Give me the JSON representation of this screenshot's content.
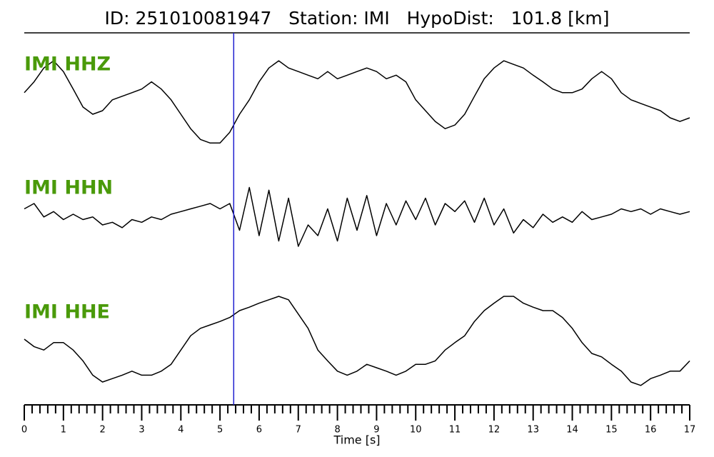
{
  "chart_data": {
    "type": "seismogram",
    "title": "ID: 251010081947   Station: IMI   HypoDist:   101.8 [km]",
    "xlabel": "Time [s]",
    "xlim": [
      0,
      17
    ],
    "xticks": [
      0,
      1,
      2,
      3,
      4,
      5,
      6,
      7,
      8,
      9,
      10,
      11,
      12,
      13,
      14,
      15,
      16,
      17
    ],
    "minor_xticks": [
      0.2,
      0.4,
      0.6,
      0.8,
      1.2,
      1.4,
      1.6,
      1.8,
      2.2,
      2.4,
      2.6,
      2.8,
      3.2,
      3.4,
      3.6,
      3.8,
      4.2,
      4.4,
      4.6,
      4.8,
      5.2,
      5.4,
      5.6,
      5.8,
      6.2,
      6.4,
      6.6,
      6.8,
      7.2,
      7.4,
      7.6,
      7.8,
      8.2,
      8.4,
      8.6,
      8.8,
      9.2,
      9.4,
      9.6,
      9.8,
      10.2,
      10.4,
      10.6,
      10.8,
      11.2,
      11.4,
      11.6,
      11.8,
      12.2,
      12.4,
      12.6,
      12.8,
      13.2,
      13.4,
      13.6,
      13.8,
      14.2,
      14.4,
      14.6,
      14.8,
      15.2,
      15.4,
      15.6,
      15.8,
      16.2,
      16.4,
      16.6,
      16.8
    ],
    "ylim": [
      -1,
      1
    ],
    "pick": 5.35,
    "pick_color": "#1f1fd0",
    "label_color": "#4a9a0a",
    "x": [
      0,
      0.25,
      0.5,
      0.75,
      1,
      1.25,
      1.5,
      1.75,
      2,
      2.25,
      2.5,
      2.75,
      3,
      3.25,
      3.5,
      3.75,
      4,
      4.25,
      4.5,
      4.75,
      5,
      5.25,
      5.5,
      5.75,
      6,
      6.25,
      6.5,
      6.75,
      7,
      7.25,
      7.5,
      7.75,
      8,
      8.25,
      8.5,
      8.75,
      9,
      9.25,
      9.5,
      9.75,
      10,
      10.25,
      10.5,
      10.75,
      11,
      11.25,
      11.5,
      11.75,
      12,
      12.25,
      12.5,
      12.75,
      13,
      13.25,
      13.5,
      13.75,
      14,
      14.25,
      14.5,
      14.75,
      15,
      15.25,
      15.5,
      15.75,
      16,
      16.25,
      16.5,
      16.75,
      17
    ],
    "series": [
      {
        "name": "IMI HHZ",
        "color": "#000000",
        "values": [
          0.17,
          0.38,
          0.65,
          0.79,
          0.58,
          0.24,
          -0.11,
          -0.25,
          -0.18,
          0.03,
          0.1,
          0.17,
          0.24,
          0.38,
          0.24,
          0.03,
          -0.25,
          -0.53,
          -0.74,
          -0.81,
          -0.81,
          -0.6,
          -0.25,
          0.03,
          0.38,
          0.65,
          0.79,
          0.65,
          0.58,
          0.51,
          0.44,
          0.58,
          0.44,
          0.51,
          0.58,
          0.65,
          0.58,
          0.44,
          0.51,
          0.38,
          0.03,
          -0.18,
          -0.39,
          -0.53,
          -0.46,
          -0.25,
          0.1,
          0.44,
          0.65,
          0.79,
          0.72,
          0.65,
          0.51,
          0.38,
          0.24,
          0.17,
          0.17,
          0.24,
          0.44,
          0.58,
          0.44,
          0.17,
          0.03,
          -0.04,
          -0.11,
          -0.18,
          -0.32,
          -0.39,
          -0.32
        ]
      },
      {
        "name": "IMI HHN",
        "color": "#000000",
        "values": [
          0.1,
          0.2,
          -0.05,
          0.05,
          -0.1,
          0,
          -0.1,
          -0.05,
          -0.2,
          -0.15,
          -0.25,
          -0.1,
          -0.15,
          -0.05,
          -0.1,
          0,
          0.05,
          0.1,
          0.15,
          0.2,
          0.1,
          0.2,
          -0.3,
          0.5,
          -0.4,
          0.45,
          -0.5,
          0.3,
          -0.6,
          -0.2,
          -0.4,
          0.1,
          -0.5,
          0.3,
          -0.3,
          0.35,
          -0.4,
          0.2,
          -0.2,
          0.25,
          -0.1,
          0.3,
          -0.2,
          0.2,
          0.05,
          0.25,
          -0.15,
          0.3,
          -0.2,
          0.1,
          -0.35,
          -0.1,
          -0.25,
          0,
          -0.15,
          -0.05,
          -0.15,
          0.05,
          -0.1,
          -0.05,
          0,
          0.1,
          0.05,
          0.1,
          0,
          0.1,
          0.05,
          0,
          0.05
        ]
      },
      {
        "name": "IMI HHE",
        "color": "#000000",
        "values": [
          0,
          -0.13,
          -0.19,
          -0.06,
          -0.06,
          -0.19,
          -0.38,
          -0.63,
          -0.75,
          -0.69,
          -0.63,
          -0.56,
          -0.63,
          -0.63,
          -0.56,
          -0.44,
          -0.19,
          0.06,
          0.19,
          0.25,
          0.31,
          0.38,
          0.5,
          0.56,
          0.63,
          0.69,
          0.75,
          0.69,
          0.44,
          0.19,
          -0.19,
          -0.38,
          -0.56,
          -0.63,
          -0.56,
          -0.44,
          -0.5,
          -0.56,
          -0.63,
          -0.56,
          -0.44,
          -0.44,
          -0.38,
          -0.19,
          -0.06,
          0.06,
          0.31,
          0.5,
          0.63,
          0.75,
          0.75,
          0.63,
          0.56,
          0.5,
          0.5,
          0.38,
          0.19,
          -0.06,
          -0.25,
          -0.31,
          -0.44,
          -0.56,
          -0.75,
          -0.81,
          -0.69,
          -0.63,
          -0.56,
          -0.56,
          -0.38
        ]
      }
    ]
  }
}
